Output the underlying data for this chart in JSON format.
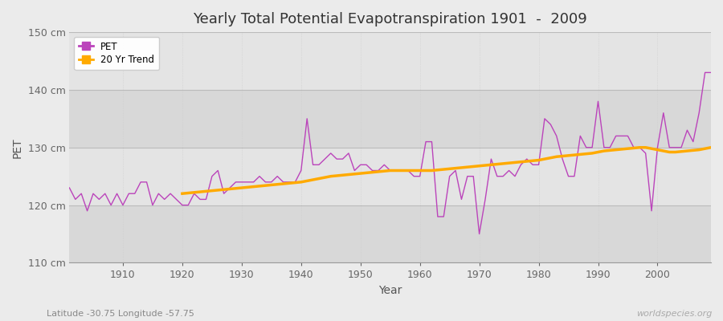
{
  "title": "Yearly Total Potential Evapotranspiration 1901  -  2009",
  "xlabel": "Year",
  "ylabel": "PET",
  "subtitle": "Latitude -30.75 Longitude -57.75",
  "watermark": "worldspecies.org",
  "background_color": "#ebebeb",
  "plot_bg_color": "#e4e4e4",
  "stripe_color": "#d8d8d8",
  "ylim": [
    110,
    150
  ],
  "xlim": [
    1901,
    2009
  ],
  "yticks": [
    110,
    120,
    130,
    140,
    150
  ],
  "ytick_labels": [
    "110 cm",
    "120 cm",
    "130 cm",
    "140 cm",
    "150 cm"
  ],
  "xticks": [
    1910,
    1920,
    1930,
    1940,
    1950,
    1960,
    1970,
    1980,
    1990,
    2000
  ],
  "pet_color": "#bb44bb",
  "trend_color": "#ffaa00",
  "legend_pet": "PET",
  "legend_trend": "20 Yr Trend",
  "years": [
    1901,
    1902,
    1903,
    1904,
    1905,
    1906,
    1907,
    1908,
    1909,
    1910,
    1911,
    1912,
    1913,
    1914,
    1915,
    1916,
    1917,
    1918,
    1919,
    1920,
    1921,
    1922,
    1923,
    1924,
    1925,
    1926,
    1927,
    1928,
    1929,
    1930,
    1931,
    1932,
    1933,
    1934,
    1935,
    1936,
    1937,
    1938,
    1939,
    1940,
    1941,
    1942,
    1943,
    1944,
    1945,
    1946,
    1947,
    1948,
    1949,
    1950,
    1951,
    1952,
    1953,
    1954,
    1955,
    1956,
    1957,
    1958,
    1959,
    1960,
    1961,
    1962,
    1963,
    1964,
    1965,
    1966,
    1967,
    1968,
    1969,
    1970,
    1971,
    1972,
    1973,
    1974,
    1975,
    1976,
    1977,
    1978,
    1979,
    1980,
    1981,
    1982,
    1983,
    1984,
    1985,
    1986,
    1987,
    1988,
    1989,
    1990,
    1991,
    1992,
    1993,
    1994,
    1995,
    1996,
    1997,
    1998,
    1999,
    2000,
    2001,
    2002,
    2003,
    2004,
    2005,
    2006,
    2007,
    2008,
    2009
  ],
  "pet_values": [
    123,
    121,
    122,
    119,
    122,
    121,
    122,
    120,
    122,
    120,
    122,
    122,
    124,
    124,
    120,
    122,
    121,
    122,
    121,
    120,
    120,
    122,
    121,
    121,
    125,
    126,
    122,
    123,
    124,
    124,
    124,
    124,
    125,
    124,
    124,
    125,
    124,
    124,
    124,
    126,
    135,
    127,
    127,
    128,
    129,
    128,
    128,
    129,
    126,
    127,
    127,
    126,
    126,
    127,
    126,
    126,
    126,
    126,
    125,
    125,
    131,
    131,
    118,
    118,
    125,
    126,
    121,
    125,
    125,
    115,
    121,
    128,
    125,
    125,
    126,
    125,
    127,
    128,
    127,
    127,
    135,
    134,
    132,
    128,
    125,
    125,
    132,
    130,
    130,
    138,
    130,
    130,
    132,
    132,
    132,
    130,
    130,
    129,
    119,
    130,
    136,
    130,
    130,
    130,
    133,
    131,
    136,
    143,
    143
  ],
  "trend_values": [
    null,
    null,
    null,
    null,
    null,
    null,
    null,
    null,
    null,
    null,
    null,
    null,
    null,
    null,
    null,
    null,
    null,
    null,
    null,
    122.0,
    122.1,
    122.2,
    122.3,
    122.4,
    122.5,
    122.6,
    122.7,
    122.8,
    122.9,
    123.0,
    123.1,
    123.2,
    123.3,
    123.4,
    123.5,
    123.6,
    123.7,
    123.8,
    123.9,
    124.0,
    124.2,
    124.4,
    124.6,
    124.8,
    125.0,
    125.1,
    125.2,
    125.3,
    125.4,
    125.5,
    125.6,
    125.7,
    125.8,
    125.9,
    126.0,
    126.0,
    126.0,
    126.0,
    126.0,
    126.0,
    126.0,
    126.0,
    126.1,
    126.2,
    126.3,
    126.4,
    126.5,
    126.6,
    126.7,
    126.8,
    126.9,
    127.0,
    127.1,
    127.2,
    127.3,
    127.4,
    127.5,
    127.6,
    127.7,
    127.8,
    128.0,
    128.2,
    128.4,
    128.5,
    128.6,
    128.7,
    128.8,
    128.9,
    129.0,
    129.2,
    129.4,
    129.5,
    129.6,
    129.7,
    129.8,
    129.9,
    130.0,
    130.0,
    129.8,
    129.6,
    129.4,
    129.2,
    129.2,
    129.3,
    129.4,
    129.5,
    129.6,
    129.8,
    130.0
  ]
}
